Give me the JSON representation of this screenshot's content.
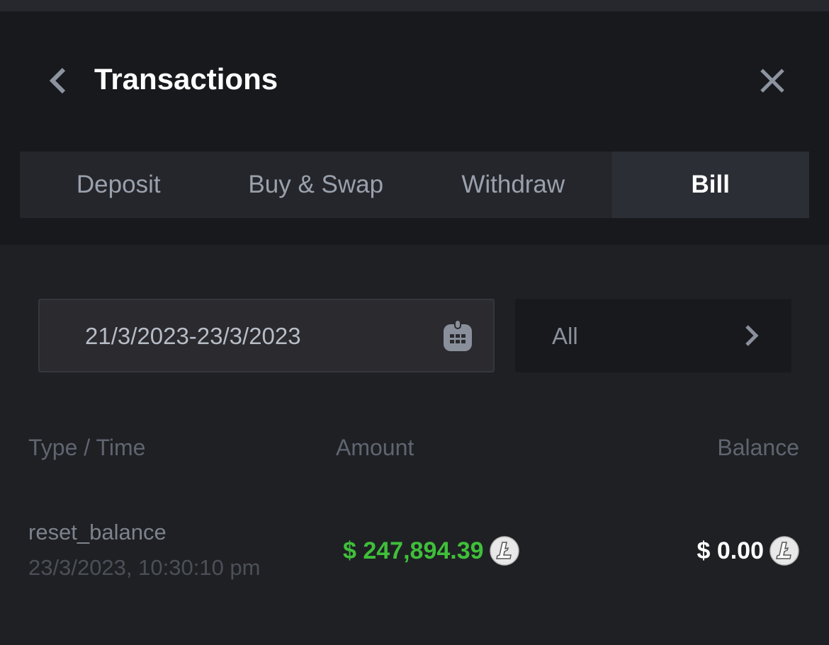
{
  "header": {
    "title": "Transactions"
  },
  "tabs": [
    {
      "label": "Deposit"
    },
    {
      "label": "Buy & Swap"
    },
    {
      "label": "Withdraw"
    },
    {
      "label": "Bill",
      "active": true
    }
  ],
  "filters": {
    "date_range": "21/3/2023-23/3/2023",
    "type": "All"
  },
  "table": {
    "columns": [
      "Type / Time",
      "Amount",
      "Balance"
    ],
    "rows": [
      {
        "type": "reset_balance",
        "time": "23/3/2023, 10:30:10 pm",
        "amount": "$ 247,894.39",
        "balance": "$ 0.00",
        "coin_icon": "litecoin-icon"
      }
    ]
  },
  "colors": {
    "positive": "#3fbf3a",
    "active_tab": "#2c2e35"
  }
}
